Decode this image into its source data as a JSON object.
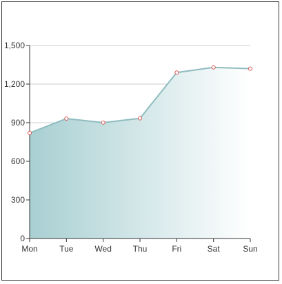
{
  "chart_data": {
    "type": "area",
    "categories": [
      "Mon",
      "Tue",
      "Wed",
      "Thu",
      "Fri",
      "Sat",
      "Sun"
    ],
    "series": [
      {
        "values": [
          820,
          932,
          901,
          934,
          1290,
          1330,
          1320
        ]
      }
    ],
    "ylim": [
      0,
      1500
    ],
    "yticks": [
      0,
      300,
      600,
      900,
      1200,
      1500
    ],
    "ytick_labels": [
      "0",
      "300",
      "600",
      "900",
      "1,200",
      "1,500"
    ],
    "grid": true,
    "title": "",
    "xlabel": "",
    "ylabel": "",
    "colors": {
      "line": "#8fbcc0",
      "area_start": "#a8cfd2",
      "area_end": "#ffffff",
      "marker_stroke": "#d9534f",
      "marker_fill": "#ffffff",
      "grid": "#cccccc",
      "axis": "#333333"
    }
  }
}
